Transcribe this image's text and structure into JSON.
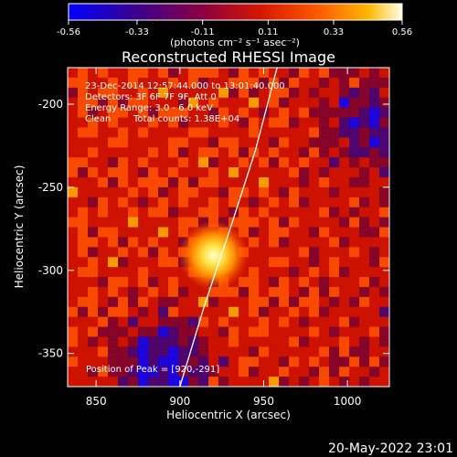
{
  "colorbar": {
    "ticks": [
      "-0.56",
      "-0.33",
      "-0.11",
      "0.11",
      "0.33",
      "0.56"
    ],
    "unit_label": "(photons cm⁻² s⁻¹ asec⁻²)",
    "min": -0.56,
    "max": 0.56
  },
  "chart_data": {
    "type": "heatmap",
    "title": "Reconstructed RHESSI Image",
    "xlabel": "Heliocentric X (arcsec)",
    "ylabel": "Heliocentric Y (arcsec)",
    "xlim": [
      833,
      1025
    ],
    "ylim": [
      -370,
      -178
    ],
    "x_ticks": [
      "850",
      "900",
      "950",
      "1000"
    ],
    "y_ticks": [
      "-200",
      "-250",
      "-300",
      "-350"
    ],
    "x_tick_values": [
      850,
      900,
      950,
      1000
    ],
    "y_tick_values": [
      -200,
      -250,
      -300,
      -350
    ],
    "annotations": [
      "23-Dec-2014 12:57:44.000 to 13:01:40.000",
      "Detectors: 3F 6F 7F 9F, Att 0",
      "Energy Range: 3.0 - 6.0 keV",
      "Clean",
      "Total counts: 1.38E+04"
    ],
    "peak_label": "Position of Peak = [920,-291]",
    "peak": [
      920,
      -291
    ],
    "limb_points": [
      [
        900,
        -370
      ],
      [
        915,
        -320
      ],
      [
        930,
        -275
      ],
      [
        945,
        -228
      ],
      [
        958,
        -178
      ]
    ],
    "colormap": [
      "#0000ff",
      "#3a0080",
      "#7a0030",
      "#cc1000",
      "#ff5000",
      "#ffb000",
      "#ffffe0"
    ]
  },
  "footer": {
    "timestamp": "20-May-2022 23:01"
  }
}
